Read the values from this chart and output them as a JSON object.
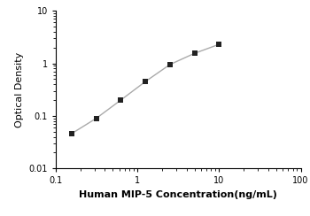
{
  "x": [
    0.156,
    0.313,
    0.625,
    1.25,
    2.5,
    5.0,
    10.0
  ],
  "y": [
    0.046,
    0.09,
    0.2,
    0.45,
    0.95,
    1.55,
    2.3
  ],
  "xlim": [
    0.1,
    100
  ],
  "ylim": [
    0.01,
    10
  ],
  "xlabel": "Human MIP-5 Concentration(ng/mL)",
  "ylabel": "Optical Density",
  "line_color": "#aaaaaa",
  "marker_color": "#222222",
  "marker": "s",
  "marker_size": 4,
  "line_width": 1.0,
  "xlabel_fontsize": 8,
  "ylabel_fontsize": 8,
  "tick_fontsize": 7,
  "background_color": "#ffffff"
}
